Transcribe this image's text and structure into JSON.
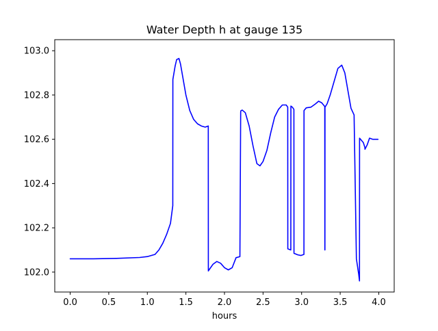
{
  "chart_data": {
    "type": "line",
    "title": "Water Depth h at gauge 135",
    "xlabel": "hours",
    "ylabel": "",
    "xlim": [
      -0.2,
      4.2
    ],
    "ylim": [
      101.91,
      103.05
    ],
    "x_ticks": [
      0.0,
      0.5,
      1.0,
      1.5,
      2.0,
      2.5,
      3.0,
      3.5,
      4.0
    ],
    "x_tick_labels": [
      "0.0",
      "0.5",
      "1.0",
      "1.5",
      "2.0",
      "2.5",
      "3.0",
      "3.5",
      "4.0"
    ],
    "y_ticks": [
      102.0,
      102.2,
      102.4,
      102.6,
      102.8,
      103.0
    ],
    "y_tick_labels": [
      "102.0",
      "102.2",
      "102.4",
      "102.6",
      "102.8",
      "103.0"
    ],
    "grid": false,
    "legend": "none",
    "series": [
      {
        "color": "#0000ff",
        "x": [
          0.0,
          0.3,
          0.6,
          0.9,
          1.0,
          1.1,
          1.15,
          1.2,
          1.25,
          1.3,
          1.33,
          1.331,
          1.36,
          1.38,
          1.41,
          1.43,
          1.46,
          1.5,
          1.55,
          1.6,
          1.65,
          1.7,
          1.75,
          1.79,
          1.791,
          1.8,
          1.85,
          1.9,
          1.95,
          2.0,
          2.05,
          2.1,
          2.15,
          2.2,
          2.21,
          2.211,
          2.23,
          2.27,
          2.32,
          2.37,
          2.42,
          2.46,
          2.5,
          2.55,
          2.6,
          2.65,
          2.7,
          2.75,
          2.8,
          2.82,
          2.821,
          2.86,
          2.861,
          2.88,
          2.9,
          2.901,
          2.95,
          2.99,
          3.03,
          3.031,
          3.06,
          3.12,
          3.18,
          3.22,
          3.26,
          3.3,
          3.301,
          3.302,
          3.303,
          3.33,
          3.37,
          3.42,
          3.47,
          3.52,
          3.56,
          3.6,
          3.64,
          3.68,
          3.71,
          3.74,
          3.75,
          3.751,
          3.8,
          3.82,
          3.821,
          3.85,
          3.88,
          3.92,
          3.96,
          3.99
        ],
        "y": [
          102.06,
          102.06,
          102.062,
          102.066,
          102.07,
          102.08,
          102.1,
          102.13,
          102.17,
          102.22,
          102.3,
          102.87,
          102.93,
          102.96,
          102.965,
          102.94,
          102.88,
          102.8,
          102.73,
          102.69,
          102.67,
          102.66,
          102.655,
          102.66,
          102.005,
          102.01,
          102.035,
          102.048,
          102.04,
          102.02,
          102.01,
          102.02,
          102.065,
          102.07,
          102.72,
          102.728,
          102.732,
          102.72,
          102.66,
          102.57,
          102.49,
          102.48,
          102.5,
          102.55,
          102.63,
          102.7,
          102.735,
          102.755,
          102.755,
          102.745,
          102.105,
          102.1,
          102.75,
          102.745,
          102.735,
          102.085,
          102.078,
          102.075,
          102.08,
          102.73,
          102.742,
          102.745,
          102.76,
          102.772,
          102.765,
          102.748,
          102.1,
          102.1,
          102.745,
          102.76,
          102.8,
          102.86,
          102.92,
          102.935,
          102.9,
          102.82,
          102.74,
          102.71,
          102.06,
          101.99,
          101.96,
          102.605,
          102.585,
          102.563,
          102.555,
          102.575,
          102.605,
          102.6,
          102.6,
          102.6
        ]
      }
    ]
  }
}
